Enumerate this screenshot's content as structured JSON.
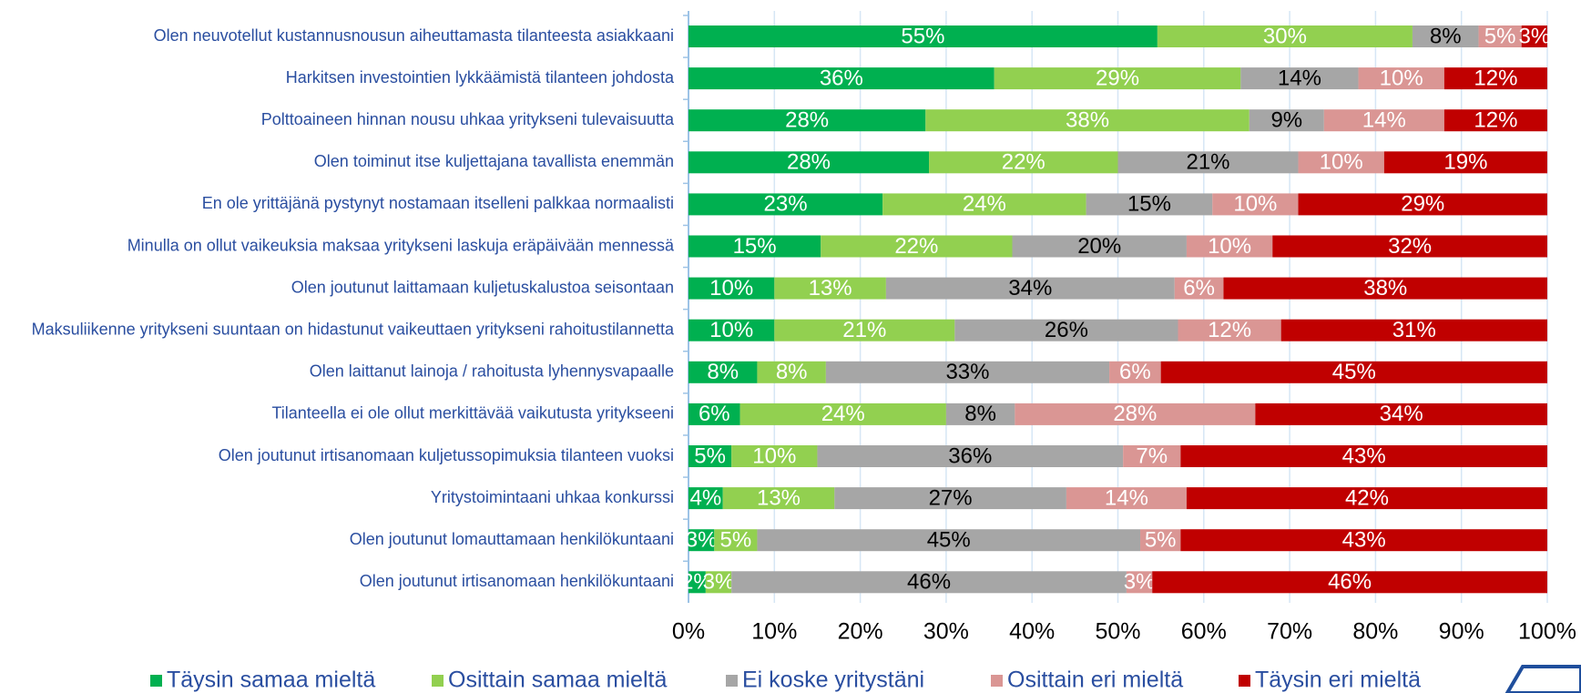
{
  "chart_data": {
    "type": "stacked_barh",
    "categories": [
      "Olen neuvotellut kustannusnousun aiheuttamasta tilanteesta asiakkaani",
      "Harkitsen investointien lykkäämistä tilanteen johdosta",
      "Polttoaineen hinnan nousu uhkaa yritykseni tulevaisuutta",
      "Olen toiminut itse kuljettajana tavallista enemmän",
      "En ole yrittäjänä pystynyt nostamaan itselleni palkkaa normaalisti",
      "Minulla on ollut vaikeuksia maksaa yritykseni laskuja eräpäivään mennessä",
      "Olen joutunut laittamaan kuljetuskalustoa seisontaan",
      "Maksuliikenne yritykseni suuntaan on hidastunut vaikeuttaen yritykseni rahoitustilannetta",
      "Olen laittanut lainoja / rahoitusta lyhennysvapaalle",
      "Tilanteella ei ole ollut merkittävää vaikutusta yritykseeni",
      "Olen joutunut irtisanomaan kuljetussopimuksia tilanteen vuoksi",
      "Yritystoimintaani uhkaa konkurssi",
      "Olen joutunut lomauttamaan henkilökuntaani",
      "Olen joutunut irtisanomaan henkilökuntaani"
    ],
    "series": [
      {
        "name": "Täysin samaa mieltä",
        "color": "#00b050",
        "values": [
          54.6,
          35.6,
          27.6,
          28,
          22.6,
          15.4,
          10,
          10,
          8,
          6,
          5,
          4,
          3,
          2
        ],
        "value_labels": [
          "55%",
          "36%",
          "28%",
          "28%",
          "23%",
          "15%",
          "10%",
          "10%",
          "8%",
          "6%",
          "5%",
          "4%",
          "3%",
          "2%"
        ]
      },
      {
        "name": "Osittain samaa mieltä",
        "color": "#92d050",
        "values": [
          29.7,
          28.7,
          37.7,
          22,
          23.7,
          22.3,
          13,
          21,
          8,
          24,
          10,
          13,
          5,
          3
        ],
        "value_labels": [
          "30%",
          "29%",
          "38%",
          "22%",
          "24%",
          "22%",
          "13%",
          "21%",
          "8%",
          "24%",
          "10%",
          "13%",
          "5%",
          "3%"
        ]
      },
      {
        "name": "Ei koske yritystäni",
        "color": "#a6a6a6",
        "values": [
          7.7,
          13.7,
          8.7,
          21,
          14.7,
          20.3,
          33.6,
          26,
          33,
          8,
          35.6,
          27,
          44.6,
          46
        ],
        "value_labels": [
          "8%",
          "14%",
          "9%",
          "21%",
          "15%",
          "20%",
          "34%",
          "26%",
          "33%",
          "8%",
          "36%",
          "27%",
          "45%",
          "46%"
        ]
      },
      {
        "name": "Osittain eri mieltä",
        "color": "#da9694",
        "values": [
          5,
          10,
          14,
          10,
          10,
          10,
          5.7,
          12,
          6,
          28,
          6.7,
          14,
          4.7,
          3
        ],
        "value_labels": [
          "5%",
          "10%",
          "14%",
          "10%",
          "10%",
          "10%",
          "6%",
          "12%",
          "6%",
          "28%",
          "7%",
          "14%",
          "5%",
          "3%"
        ]
      },
      {
        "name": "Täysin eri mieltä",
        "color": "#c00000",
        "values": [
          3,
          12,
          12,
          19,
          29,
          32,
          37.7,
          31,
          45,
          34,
          42.7,
          42,
          42.7,
          46
        ],
        "value_labels": [
          "3%",
          "12%",
          "12%",
          "19%",
          "29%",
          "32%",
          "38%",
          "31%",
          "45%",
          "34%",
          "43%",
          "42%",
          "43%",
          "46%"
        ]
      }
    ],
    "xlim": [
      0,
      100
    ],
    "xticks": [
      {
        "value": 0,
        "label": "0%"
      },
      {
        "value": 10,
        "label": "10%"
      },
      {
        "value": 20,
        "label": "20%"
      },
      {
        "value": 30,
        "label": "30%"
      },
      {
        "value": 40,
        "label": "40%"
      },
      {
        "value": 50,
        "label": "50%"
      },
      {
        "value": 60,
        "label": "60%"
      },
      {
        "value": 70,
        "label": "70%"
      },
      {
        "value": 80,
        "label": "80%"
      },
      {
        "value": 90,
        "label": "90%"
      },
      {
        "value": 100,
        "label": "100%"
      }
    ],
    "grid": true,
    "legend": "bottom"
  }
}
